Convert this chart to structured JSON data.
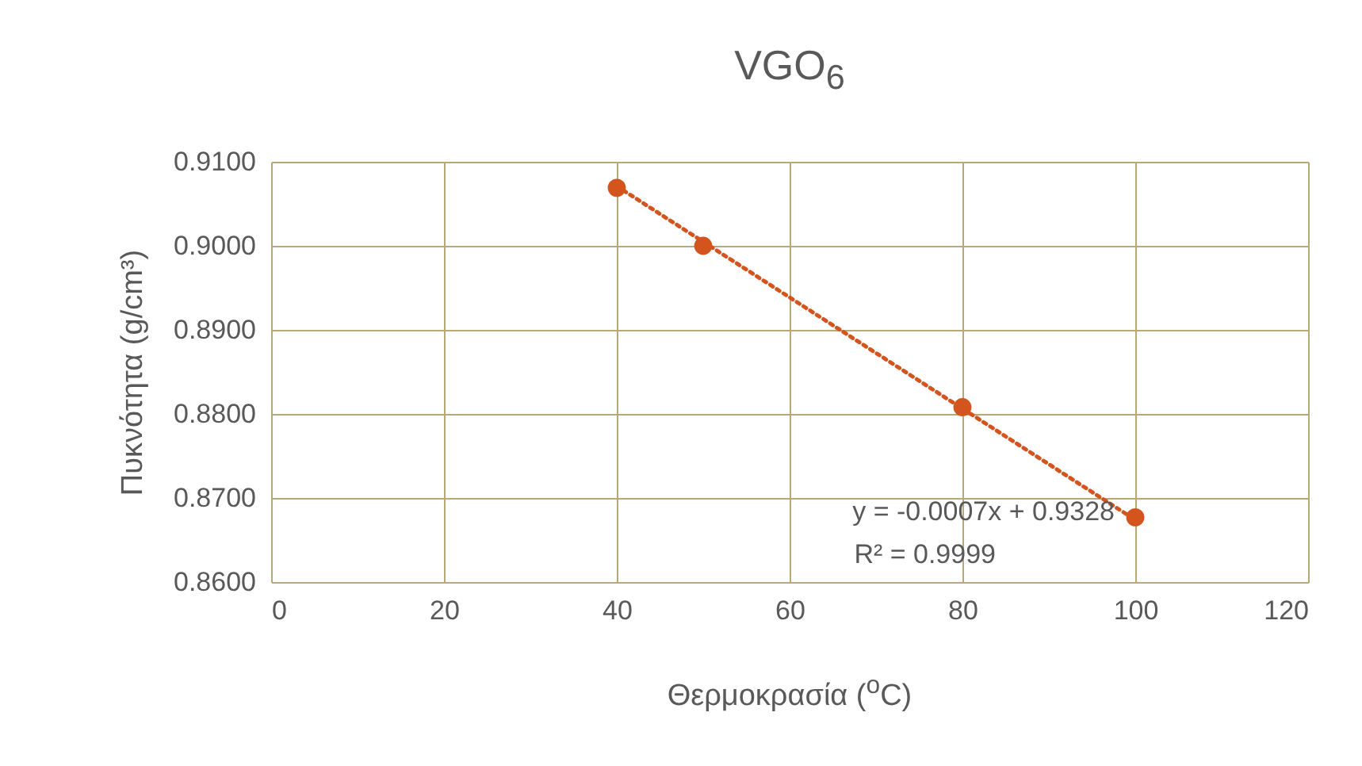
{
  "chart_data": {
    "type": "scatter",
    "title": "VGO$_{6}$",
    "xlabel": "Θερμοκρασία ($^{o}$C)",
    "ylabel": "Πυκνότητα (g/cm³)",
    "annotations": [
      "y = -0.0007x + 0.9328",
      "R² = 0.9999"
    ],
    "xlim": [
      0,
      120
    ],
    "xticks": [
      0,
      20,
      40,
      60,
      80,
      100,
      120
    ],
    "ylim": [
      0.86,
      0.91
    ],
    "yticks": [
      {
        "value": 0.86,
        "label": "0.8600"
      },
      {
        "value": 0.87,
        "label": "0.8700"
      },
      {
        "value": 0.88,
        "label": "0.8800"
      },
      {
        "value": 0.89,
        "label": "0.8900"
      },
      {
        "value": 0.9,
        "label": "0.9000"
      },
      {
        "value": 0.91,
        "label": "0.9100"
      }
    ],
    "grid": true,
    "series": [
      {
        "type": "scatter",
        "color": "#d4541e",
        "marker": "circle",
        "x": [
          40,
          50,
          80,
          100
        ],
        "values": [
          0.9069,
          0.9,
          0.8808,
          0.8677
        ]
      },
      {
        "type": "line",
        "color": "#d4541e",
        "line_style": "dotted",
        "marker": "none",
        "x": [
          40,
          100
        ],
        "values": [
          0.9071,
          0.8674
        ]
      }
    ]
  }
}
